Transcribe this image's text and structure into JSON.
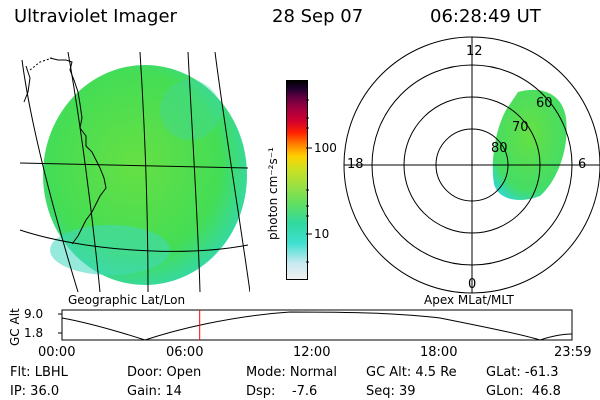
{
  "header": {
    "title": "Ultraviolet Imager",
    "date": "28 Sep 07",
    "time": "06:28:49 UT"
  },
  "colorbar": {
    "label": "photon cm⁻²s⁻¹",
    "ticks": [
      "100",
      "10"
    ],
    "colors": [
      "#f0f0f0",
      "#c8e8f0",
      "#40e0d0",
      "#30d8a0",
      "#60e060",
      "#a0e040",
      "#d0e020",
      "#ffd000",
      "#ff8000",
      "#ff2000",
      "#d00030",
      "#a00040",
      "#600040",
      "#200030",
      "#000000"
    ]
  },
  "left_globe": {
    "caption": "Geographic Lat/Lon",
    "fill": "#44dd44"
  },
  "polar": {
    "caption": "Apex MLat/MLT",
    "mlt_labels": {
      "top": "12",
      "left": "18",
      "right": "6",
      "bottom": "0"
    },
    "lat_labels": [
      "60",
      "70",
      "80"
    ],
    "fill": "#44dd44"
  },
  "timeline": {
    "ylabel": "GC Alt",
    "yticks": [
      "9.0",
      "1.8"
    ],
    "xticks": [
      "00:00",
      "06:00",
      "12:00",
      "18:00",
      "23:59"
    ],
    "marker_color": "#ff0000",
    "marker_hour": 6.48
  },
  "info": {
    "flt": "Flt: LBHL",
    "ip": "IP: 36.0",
    "door": "Door: Open",
    "gain": "Gain: 14",
    "mode": "Mode: Normal",
    "dsp": "Dsp:    -7.6",
    "gcalt": "GC Alt: 4.5 Re",
    "seq": "Seq: 39",
    "glat": "GLat: -61.3",
    "glon": "GLon:  46.8"
  }
}
